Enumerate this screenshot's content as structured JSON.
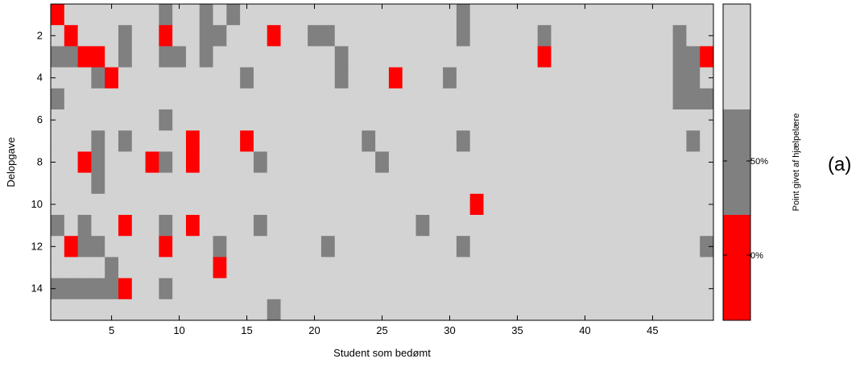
{
  "chart_data": {
    "type": "heatmap",
    "xlabel": "Student som bedømt",
    "ylabel": "Delopgave",
    "x_ticks": [
      5,
      10,
      15,
      20,
      25,
      30,
      35,
      40,
      45
    ],
    "y_ticks": [
      2,
      4,
      6,
      8,
      10,
      12,
      14
    ],
    "x_range": [
      1,
      49
    ],
    "y_range": [
      1,
      15
    ],
    "students": 49,
    "tasks": 15,
    "level_legend": {
      "0": "below 50% (red)",
      "1": "50% (dark gray)",
      "2": "full (light gray)"
    },
    "colors": {
      "0": "#ff0000",
      "1": "#808080",
      "2": "#d3d3d3"
    },
    "colorbar": {
      "title": "Point givet af hjælpelære",
      "tick_labels": [
        "0%",
        "50%"
      ]
    },
    "panel_label": "(a)",
    "rows": [
      "0222222212212122222222222222221222222222222222222",
      "2022212202211222022112222222221222221222222222122",
      "1100212211212222222221222222222222220222222222110",
      "2221022222222212222221222022212222222222222222112",
      "1222222222222222222222222222222222222222222222111",
      "2222222212222222222222222222222222222222222222222",
      "2221212222022202222222212222221222222222222222212",
      "2201222012022221222222221222222222222222222222222",
      "2221222222222222222222222222222222222222222222222",
      "2222222222222222222222222222222022222222222222222",
      "1212202212022221222222222221222222222222222222222",
      "2011222202221222222212222222221222222222222222221",
      "2222122222220222222222222222222222222222222222222",
      "1111102212222222222222222222222222222222222222222",
      "2222222222222222122222222222222222222222222222222"
    ]
  }
}
